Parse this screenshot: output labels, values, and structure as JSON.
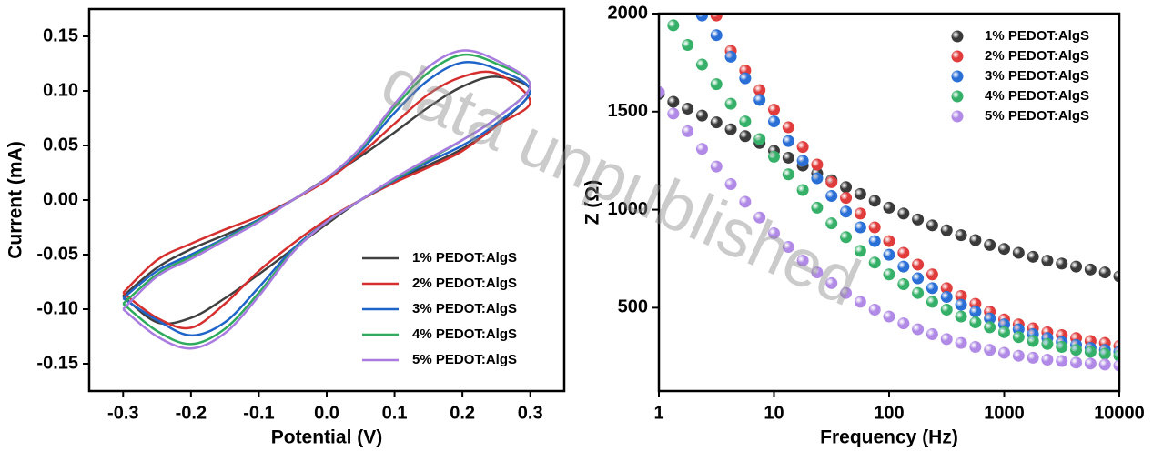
{
  "watermark": "data unpublished",
  "chart_data": [
    {
      "type": "line",
      "xlabel": "Potential (V)",
      "ylabel": "Current (mA)",
      "xlim": [
        -0.35,
        0.35
      ],
      "ylim": [
        -0.175,
        0.175
      ],
      "xticks": [
        -0.3,
        -0.2,
        -0.1,
        {
          "value": 0,
          "label": "0.0"
        },
        0.1,
        0.2,
        0.3
      ],
      "yticks": [
        -0.15,
        {
          "value": -0.1,
          "label": "-0.10"
        },
        -0.05,
        {
          "value": 0,
          "label": "0.00"
        },
        0.05,
        {
          "value": 0.1,
          "label": "0.10"
        },
        0.15
      ],
      "legend": "lower right",
      "x": [
        -0.3,
        -0.25,
        -0.2,
        -0.15,
        -0.1,
        -0.05,
        0,
        0.05,
        0.1,
        0.15,
        0.2,
        0.25,
        0.3,
        0.25,
        0.2,
        0.15,
        0.1,
        0.05,
        0,
        -0.05,
        -0.1,
        -0.15,
        -0.2,
        -0.25,
        -0.3
      ],
      "series": [
        {
          "name": "1% PEDOT:AlgS",
          "color": "#404040",
          "values": [
            -0.088,
            -0.062,
            -0.045,
            -0.032,
            -0.018,
            0,
            0.02,
            0.04,
            0.062,
            0.085,
            0.104,
            0.113,
            0.1,
            0.068,
            0.047,
            0.032,
            0.018,
            0,
            -0.022,
            -0.045,
            -0.068,
            -0.09,
            -0.108,
            -0.112,
            -0.088
          ]
        },
        {
          "name": "2% PEDOT:AlgS",
          "color": "#d62f2f",
          "values": [
            -0.085,
            -0.055,
            -0.04,
            -0.027,
            -0.015,
            0,
            0.018,
            0.042,
            0.07,
            0.097,
            0.113,
            0.116,
            0.09,
            0.068,
            0.045,
            0.03,
            0.016,
            0,
            -0.018,
            -0.04,
            -0.065,
            -0.095,
            -0.117,
            -0.108,
            -0.085
          ]
        },
        {
          "name": "3% PEDOT:AlgS",
          "color": "#1f64c8",
          "values": [
            -0.09,
            -0.065,
            -0.05,
            -0.035,
            -0.018,
            0,
            0.02,
            0.045,
            0.08,
            0.11,
            0.126,
            0.12,
            0.1,
            0.07,
            0.05,
            0.035,
            0.018,
            0,
            -0.02,
            -0.045,
            -0.08,
            -0.112,
            -0.124,
            -0.11,
            -0.09
          ]
        },
        {
          "name": "4% PEDOT:AlgS",
          "color": "#2eab5c",
          "values": [
            -0.095,
            -0.068,
            -0.052,
            -0.036,
            -0.019,
            0,
            0.02,
            0.047,
            0.085,
            0.117,
            0.133,
            0.125,
            0.105,
            0.075,
            0.055,
            0.037,
            0.019,
            0,
            -0.02,
            -0.047,
            -0.085,
            -0.118,
            -0.132,
            -0.12,
            -0.095
          ]
        },
        {
          "name": "5% PEDOT:AlgS",
          "color": "#a97be0",
          "values": [
            -0.1,
            -0.07,
            -0.054,
            -0.037,
            -0.02,
            0,
            0.02,
            0.048,
            0.088,
            0.122,
            0.137,
            0.128,
            0.105,
            0.075,
            0.055,
            0.038,
            0.02,
            0,
            -0.02,
            -0.048,
            -0.088,
            -0.122,
            -0.136,
            -0.125,
            -0.1
          ]
        }
      ]
    },
    {
      "type": "scatter",
      "xlabel": "Frequency (Hz)",
      "ylabel": "Z (Ω)",
      "xscale": "log",
      "xlim": [
        1,
        10000
      ],
      "ylim": [
        75,
        2000
      ],
      "xticks": [
        1,
        10,
        100,
        1000,
        10000
      ],
      "yticks": [
        500,
        1000,
        1500,
        2000
      ],
      "legend": "upper right",
      "x": [
        1,
        1.334,
        1.778,
        2.371,
        3.162,
        4.217,
        5.623,
        7.499,
        10,
        13.34,
        17.78,
        23.71,
        31.62,
        42.17,
        56.23,
        74.99,
        100,
        133.4,
        177.8,
        237.1,
        316.2,
        421.7,
        562.3,
        749.9,
        1000,
        1334,
        1778,
        2371,
        3162,
        4217,
        5623,
        7499,
        10000
      ],
      "series": [
        {
          "name": "1% PEDOT:AlgS",
          "color": "#3a3a3a",
          "values": [
            1590,
            1550,
            1515,
            1480,
            1445,
            1410,
            1375,
            1340,
            1300,
            1265,
            1225,
            1185,
            1150,
            1115,
            1080,
            1045,
            1010,
            980,
            950,
            920,
            895,
            870,
            845,
            820,
            800,
            780,
            760,
            740,
            725,
            710,
            695,
            680,
            660
          ]
        },
        {
          "name": "2% PEDOT:AlgS",
          "color": "#e03c3c",
          "values": [
            null,
            null,
            null,
            null,
            1990,
            1810,
            1710,
            1610,
            1510,
            1420,
            1320,
            1230,
            1140,
            1060,
            980,
            910,
            840,
            780,
            720,
            670,
            600,
            560,
            520,
            480,
            440,
            415,
            395,
            375,
            360,
            345,
            330,
            320,
            305
          ]
        },
        {
          "name": "3% PEDOT:AlgS",
          "color": "#2a6fd6",
          "values": [
            null,
            null,
            null,
            1990,
            1890,
            1780,
            1670,
            1560,
            1450,
            1350,
            1250,
            1160,
            1070,
            990,
            910,
            840,
            770,
            710,
            650,
            600,
            555,
            515,
            480,
            445,
            415,
            390,
            365,
            345,
            325,
            310,
            295,
            285,
            275
          ]
        },
        {
          "name": "4% PEDOT:AlgS",
          "color": "#35b068",
          "values": [
            null,
            1940,
            1840,
            1740,
            1640,
            1540,
            1450,
            1360,
            1270,
            1180,
            1100,
            1010,
            930,
            860,
            790,
            730,
            670,
            620,
            575,
            530,
            490,
            455,
            425,
            400,
            375,
            350,
            330,
            315,
            300,
            285,
            275,
            265,
            255
          ]
        },
        {
          "name": "5% PEDOT:AlgS",
          "color": "#b08ae6",
          "values": [
            1600,
            1490,
            1400,
            1310,
            1220,
            1130,
            1040,
            960,
            880,
            810,
            740,
            680,
            625,
            575,
            530,
            490,
            455,
            420,
            390,
            365,
            340,
            320,
            300,
            285,
            270,
            255,
            245,
            235,
            228,
            220,
            215,
            210,
            205
          ]
        }
      ]
    }
  ]
}
